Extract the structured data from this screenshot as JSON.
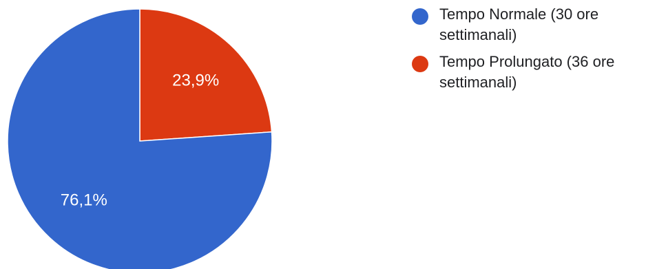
{
  "chart_data": {
    "type": "pie",
    "title": "",
    "slices": [
      {
        "label": "Tempo Normale (30 ore settimanali)",
        "value": 76.1,
        "display": "76,1%",
        "color": "#3366cc"
      },
      {
        "label": "Tempo Prolungato (36 ore settimanali)",
        "value": 23.9,
        "display": "23,9%",
        "color": "#dc3912"
      }
    ],
    "start_angle_deg": 0,
    "direction": "clockwise",
    "legend_position": "right"
  },
  "legend": {
    "items": [
      {
        "label": "Tempo Normale (30 ore settimanali)",
        "color": "#3366cc"
      },
      {
        "label": "Tempo Prolungato (36 ore settimanali)",
        "color": "#dc3912"
      }
    ]
  }
}
